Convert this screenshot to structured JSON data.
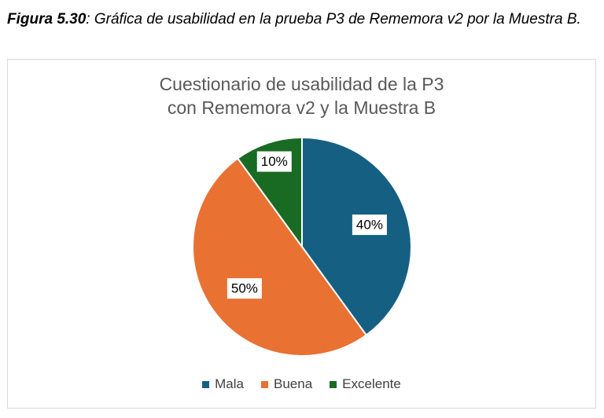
{
  "caption": {
    "figure_number": "Figura 5.30",
    "text": ": Gráfica de usabilidad en la prueba P3 de Rememora v2 por la Muestra B."
  },
  "chart_data": {
    "type": "pie",
    "title_lines": [
      "Cuestionario de usabilidad de la P3",
      "con Rememora v2 y la Muestra B"
    ],
    "categories": [
      "Mala",
      "Buena",
      "Excelente"
    ],
    "values": [
      40,
      50,
      10
    ],
    "labels": [
      "40%",
      "50%",
      "10%"
    ],
    "colors": [
      "#156082",
      "#E97132",
      "#196B24"
    ],
    "start_angle_deg": 0,
    "direction": "clockwise",
    "legend_position": "bottom"
  }
}
